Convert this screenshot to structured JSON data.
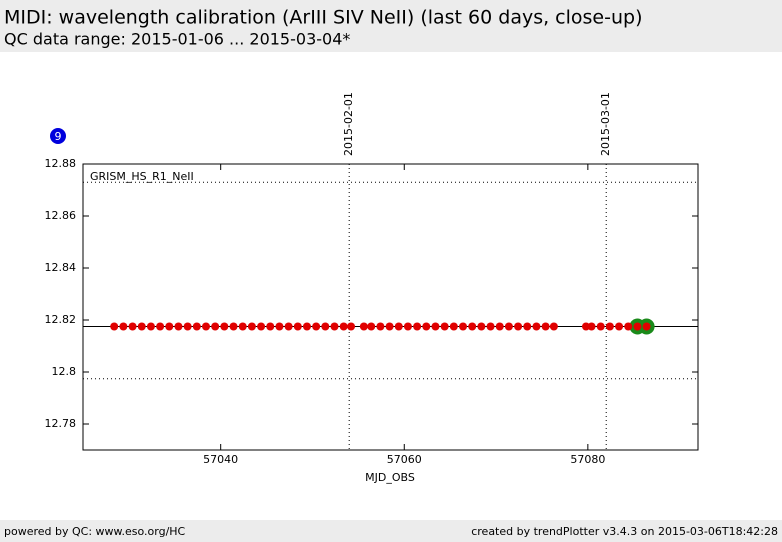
{
  "chart_data": {
    "type": "scatter",
    "title": "MIDI: wavelength calibration (ArIII SIV NeII) (last 60 days, close-up)",
    "subtitle": "QC data range: 2015-01-06 ... 2015-03-04*",
    "badge": "9",
    "panel_label": "GRISM_HS_R1_NeII",
    "x_label": "MJD_OBS",
    "xlim": [
      57025,
      57092
    ],
    "ylim": [
      12.77,
      12.88
    ],
    "xticks": [
      57040,
      57060,
      57080
    ],
    "yticks": [
      12.78,
      12.8,
      12.82,
      12.84,
      12.86,
      12.88
    ],
    "date_lines": [
      {
        "value": 57054,
        "label": "2015-02-01"
      },
      {
        "value": 57082,
        "label": "2015-03-01"
      }
    ],
    "mean_line": 12.8175,
    "limit_lines": [
      12.873,
      12.7974
    ],
    "series": [
      {
        "color": "#1a8a1a",
        "size": 8,
        "x": [
          57085.4,
          57086.4
        ],
        "values": [
          12.8175,
          12.8175
        ]
      },
      {
        "color": "#e00000",
        "size": 4,
        "x": [
          57028.4,
          57029.4,
          57030.4,
          57031.4,
          57032.4,
          57033.4,
          57034.4,
          57035.4,
          57036.4,
          57037.4,
          57038.4,
          57039.4,
          57040.4,
          57041.4,
          57042.4,
          57043.4,
          57044.4,
          57045.4,
          57046.4,
          57047.4,
          57048.4,
          57049.4,
          57050.4,
          57051.4,
          57052.4,
          57053.4,
          57054.2,
          57055.6,
          57056.4,
          57057.4,
          57058.4,
          57059.4,
          57060.4,
          57061.4,
          57062.4,
          57063.4,
          57064.4,
          57065.4,
          57066.4,
          57067.4,
          57068.4,
          57069.4,
          57070.4,
          57071.4,
          57072.4,
          57073.4,
          57074.4,
          57075.4,
          57076.3,
          57079.8,
          57080.4,
          57081.4,
          57082.4,
          57083.4,
          57084.4,
          57085.4,
          57086.4
        ],
        "values": [
          12.8175,
          12.8175,
          12.8175,
          12.8175,
          12.8175,
          12.8175,
          12.8175,
          12.8175,
          12.8175,
          12.8175,
          12.8175,
          12.8175,
          12.8175,
          12.8175,
          12.8175,
          12.8175,
          12.8175,
          12.8175,
          12.8175,
          12.8175,
          12.8175,
          12.8175,
          12.8175,
          12.8175,
          12.8175,
          12.8175,
          12.8175,
          12.8175,
          12.8175,
          12.8175,
          12.8175,
          12.8175,
          12.8175,
          12.8175,
          12.8175,
          12.8175,
          12.8175,
          12.8175,
          12.8175,
          12.8175,
          12.8175,
          12.8175,
          12.8175,
          12.8175,
          12.8175,
          12.8175,
          12.8175,
          12.8175,
          12.8175,
          12.8175,
          12.8175,
          12.8175,
          12.8175,
          12.8175,
          12.8175,
          12.8175,
          12.8175
        ]
      }
    ]
  },
  "footer": {
    "left": "powered by QC: www.eso.org/HC",
    "right": "created by trendPlotter v3.4.3 on 2015-03-06T18:42:28"
  }
}
